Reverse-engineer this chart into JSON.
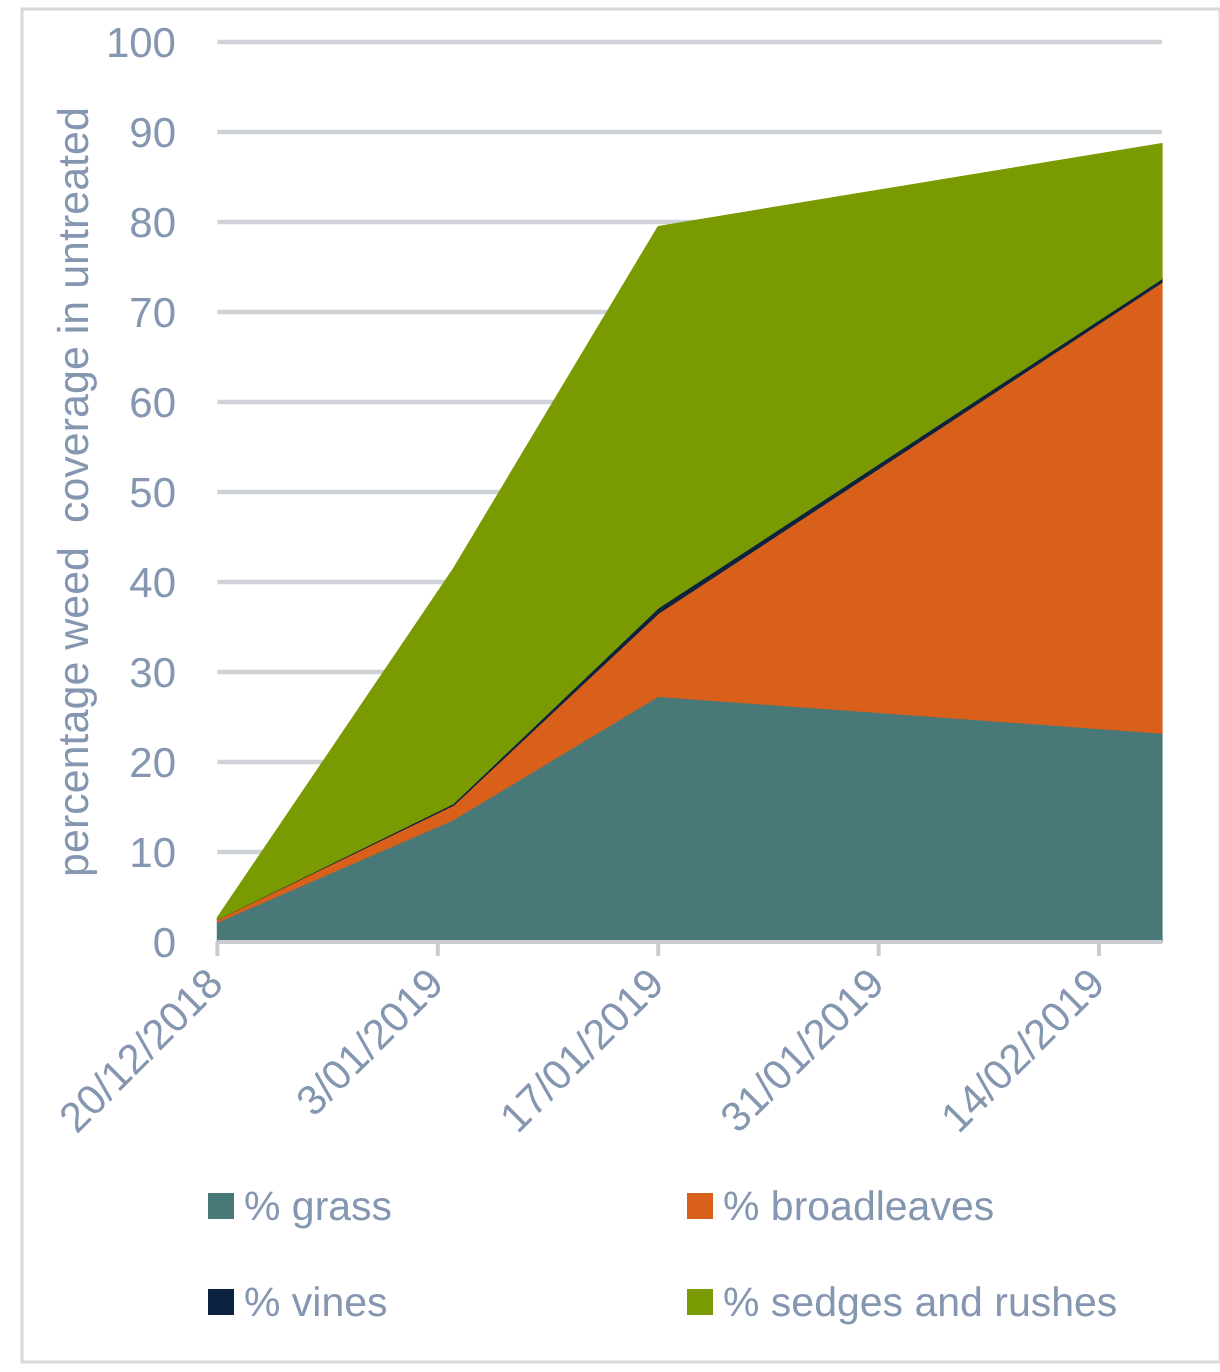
{
  "chart_data": {
    "type": "area",
    "stacked": true,
    "ylabel": "percentage weed  coverage in untreated",
    "x": [
      "2018-12-20",
      "2019-01-04",
      "2019-01-17",
      "2019-02-18"
    ],
    "series": [
      {
        "name": "% grass",
        "color": "#487878",
        "values": [
          2.2,
          13.6,
          27.3,
          23.2
        ]
      },
      {
        "name": "% broadleaves",
        "color": "#d8601a",
        "values": [
          0.3,
          1.6,
          9.2,
          50.1
        ]
      },
      {
        "name": "% vines",
        "color": "#0c2340",
        "values": [
          0,
          0.2,
          0.6,
          0.4
        ]
      },
      {
        "name": "% sedges and rushes",
        "color": "#7a9a01",
        "values": [
          0.2,
          26.1,
          42.4,
          15.0
        ]
      }
    ],
    "xlim": [
      "2018-12-20",
      "2019-02-18"
    ],
    "xticks": [
      {
        "value": "2018-12-20",
        "label": "20/12/2018"
      },
      {
        "value": "2019-01-03",
        "label": "3/01/2019"
      },
      {
        "value": "2019-01-17",
        "label": "17/01/2019"
      },
      {
        "value": "2019-01-31",
        "label": "31/01/2019"
      },
      {
        "value": "2019-02-14",
        "label": "14/02/2019"
      }
    ],
    "ylim": [
      0,
      100
    ],
    "yticks": [
      0,
      10,
      20,
      30,
      40,
      50,
      60,
      70,
      80,
      90,
      100
    ],
    "grid": "y",
    "legend": "bottom"
  }
}
